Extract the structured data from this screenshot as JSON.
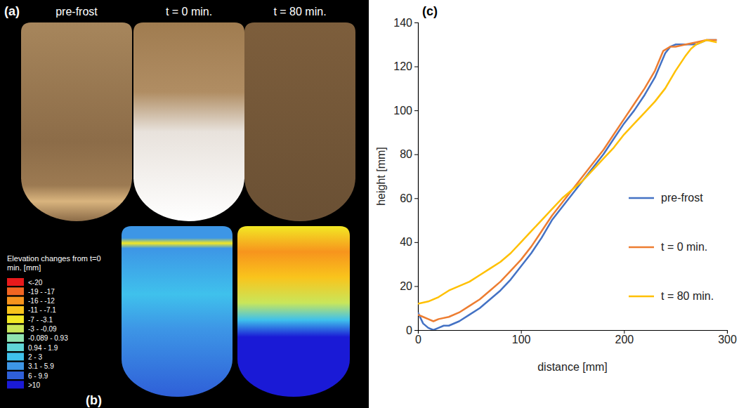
{
  "chart_data": {
    "type": "line",
    "xlabel": "distance [mm]",
    "ylabel": "height [mm]",
    "xlim": [
      0,
      300
    ],
    "xticks": [
      0,
      100,
      200,
      300
    ],
    "ylim": [
      0,
      140
    ],
    "yticks": [
      0,
      20,
      40,
      60,
      80,
      100,
      120,
      140
    ],
    "grid": false,
    "legend": "right",
    "series": [
      {
        "name": "pre-frost",
        "color": "#4472c4",
        "x": [
          0,
          5,
          10,
          15,
          20,
          25,
          30,
          40,
          50,
          60,
          70,
          80,
          90,
          100,
          110,
          120,
          130,
          140,
          150,
          160,
          170,
          180,
          190,
          200,
          210,
          220,
          230,
          240,
          245,
          250,
          260,
          270,
          280,
          290
        ],
        "values": [
          8,
          3,
          1,
          0,
          1,
          2,
          2,
          4,
          7,
          10,
          14,
          18,
          23,
          29,
          35,
          42,
          50,
          56,
          62,
          68,
          74,
          80,
          87,
          94,
          100,
          107,
          115,
          126,
          129,
          130,
          130,
          130,
          132,
          132
        ]
      },
      {
        "name": "t = 0 min.",
        "color": "#ed7d31",
        "x": [
          0,
          5,
          10,
          15,
          20,
          30,
          40,
          50,
          60,
          70,
          80,
          90,
          100,
          110,
          120,
          130,
          140,
          150,
          160,
          170,
          180,
          190,
          200,
          210,
          220,
          230,
          238,
          245,
          250,
          260,
          270,
          280,
          290
        ],
        "values": [
          7,
          6,
          5,
          4,
          5,
          6,
          8,
          11,
          14,
          18,
          22,
          27,
          32,
          38,
          45,
          52,
          58,
          64,
          70,
          76,
          82,
          89,
          96,
          103,
          110,
          118,
          127,
          129,
          129,
          130,
          131,
          132,
          132
        ]
      },
      {
        "name": "t = 80 min.",
        "color": "#ffc000",
        "x": [
          0,
          10,
          20,
          30,
          40,
          50,
          60,
          70,
          80,
          90,
          100,
          110,
          120,
          130,
          140,
          150,
          160,
          170,
          180,
          190,
          200,
          210,
          220,
          230,
          240,
          250,
          260,
          265,
          270,
          280,
          290
        ],
        "values": [
          12,
          13,
          15,
          18,
          20,
          22,
          25,
          28,
          31,
          35,
          40,
          45,
          50,
          55,
          60,
          64,
          68,
          73,
          78,
          83,
          89,
          94,
          99,
          104,
          110,
          118,
          125,
          128,
          130,
          132,
          131
        ]
      }
    ]
  },
  "figure": {
    "panel_a": {
      "letter": "(a)",
      "titles": [
        "pre-frost",
        "t = 0 min.",
        "t = 80 min."
      ]
    },
    "panel_b": {
      "letter": "(b)",
      "legend_title": "Elevation changes from t=0 min. [mm]",
      "legend": [
        {
          "label": "<-20",
          "color": "#e8191b"
        },
        {
          "label": "-19 - -17",
          "color": "#f26522"
        },
        {
          "label": "-16 - -12",
          "color": "#f7941d"
        },
        {
          "label": "-11 - -7.1",
          "color": "#f9c41c"
        },
        {
          "label": "-7 - -3.1",
          "color": "#f2e824"
        },
        {
          "label": "-3 - -0.09",
          "color": "#c9e65a"
        },
        {
          "label": "-0.089 - 0.93",
          "color": "#8fe3b0"
        },
        {
          "label": "0.94 - 1.9",
          "color": "#5fd5d6"
        },
        {
          "label": "2 - 3",
          "color": "#3fc1ec"
        },
        {
          "label": "3.1 - 5.9",
          "color": "#3d96e6"
        },
        {
          "label": "6 - 9.9",
          "color": "#2f5fd8"
        },
        {
          "label": ">10",
          "color": "#1a1ad6"
        }
      ]
    },
    "panel_c": {
      "letter": "(c)"
    }
  }
}
